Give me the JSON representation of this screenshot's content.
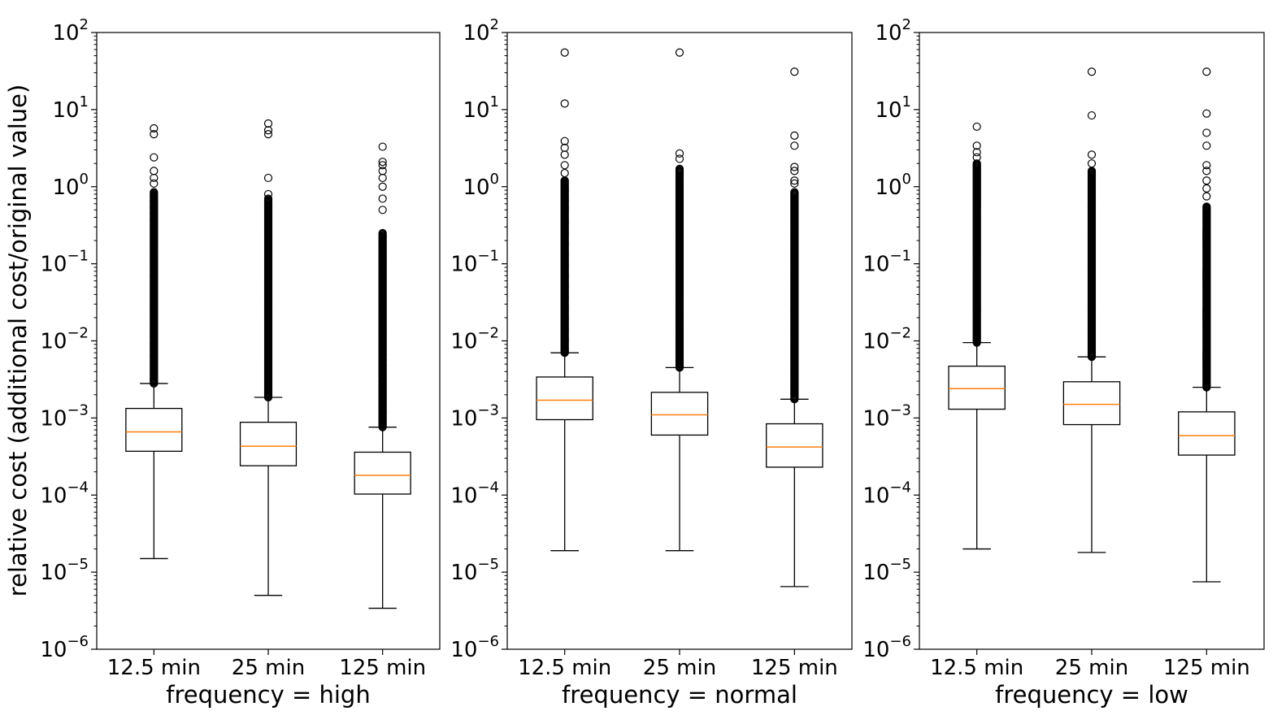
{
  "chart_data": {
    "type": "box",
    "ylabel": "relative cost (additional cost/original value)",
    "yscale": "log",
    "ylim": [
      1e-06,
      100
    ],
    "y_tick_exponents": [
      -6,
      -5,
      -4,
      -3,
      -2,
      -1,
      0,
      1,
      2
    ],
    "grid": false,
    "box_color": "#000000",
    "median_color": "#ff7f0e",
    "flier_marker": "open circle",
    "panels": [
      {
        "xlabel": "frequency = high",
        "categories": [
          "12.5 min",
          "25 min",
          "125 min"
        ],
        "series": [
          {
            "whisker_low": 1.5e-05,
            "q1": 0.00037,
            "median": 0.00066,
            "q3": 0.00133,
            "whisker_high": 0.0028,
            "flier_min": 0.0028,
            "flier_dense_max": 0.85,
            "outliers": [
              1.1,
              1.3,
              1.6,
              2.4,
              4.8,
              5.7
            ]
          },
          {
            "whisker_low": 5e-06,
            "q1": 0.00024,
            "median": 0.00043,
            "q3": 0.00088,
            "whisker_high": 0.00185,
            "flier_min": 0.00185,
            "flier_dense_max": 0.7,
            "outliers": [
              0.8,
              1.3,
              4.8,
              5.4,
              6.6
            ]
          },
          {
            "whisker_low": 3.4e-06,
            "q1": 0.000103,
            "median": 0.00018,
            "q3": 0.00036,
            "whisker_high": 0.00076,
            "flier_min": 0.00076,
            "flier_dense_max": 0.25,
            "outliers": [
              0.5,
              0.7,
              1.0,
              1.3,
              1.6,
              1.9,
              2.1,
              3.3
            ]
          }
        ]
      },
      {
        "xlabel": "frequency = normal",
        "categories": [
          "12.5 min",
          "25 min",
          "125 min"
        ],
        "series": [
          {
            "whisker_low": 1.9e-05,
            "q1": 0.00095,
            "median": 0.0017,
            "q3": 0.0034,
            "whisker_high": 0.007,
            "flier_min": 0.007,
            "flier_dense_max": 1.2,
            "outliers": [
              1.5,
              1.9,
              2.6,
              3.2,
              3.9,
              12,
              55
            ]
          },
          {
            "whisker_low": 1.9e-05,
            "q1": 0.0006,
            "median": 0.0011,
            "q3": 0.00215,
            "whisker_high": 0.0045,
            "flier_min": 0.0045,
            "flier_dense_max": 1.7,
            "outliers": [
              2.3,
              2.7,
              55
            ]
          },
          {
            "whisker_low": 6.5e-06,
            "q1": 0.00023,
            "median": 0.00042,
            "q3": 0.00084,
            "whisker_high": 0.00175,
            "flier_min": 0.00175,
            "flier_dense_max": 0.85,
            "outliers": [
              1.1,
              1.2,
              1.6,
              1.8,
              3.4,
              4.6,
              31
            ]
          }
        ]
      },
      {
        "xlabel": "frequency = low",
        "categories": [
          "12.5 min",
          "25 min",
          "125 min"
        ],
        "series": [
          {
            "whisker_low": 2e-05,
            "q1": 0.0013,
            "median": 0.0024,
            "q3": 0.0047,
            "whisker_high": 0.0095,
            "flier_min": 0.0095,
            "flier_dense_max": 2.0,
            "outliers": [
              2.4,
              2.8,
              3.4,
              6.0
            ]
          },
          {
            "whisker_low": 1.8e-05,
            "q1": 0.00082,
            "median": 0.0015,
            "q3": 0.00295,
            "whisker_high": 0.0062,
            "flier_min": 0.0062,
            "flier_dense_max": 1.6,
            "outliers": [
              2.0,
              2.6,
              8.4,
              31
            ]
          },
          {
            "whisker_low": 7.5e-06,
            "q1": 0.00033,
            "median": 0.00059,
            "q3": 0.0012,
            "whisker_high": 0.0025,
            "flier_min": 0.0025,
            "flier_dense_max": 0.55,
            "outliers": [
              0.75,
              0.95,
              1.2,
              1.6,
              1.9,
              3.4,
              5.0,
              8.9,
              31
            ]
          }
        ]
      }
    ]
  }
}
